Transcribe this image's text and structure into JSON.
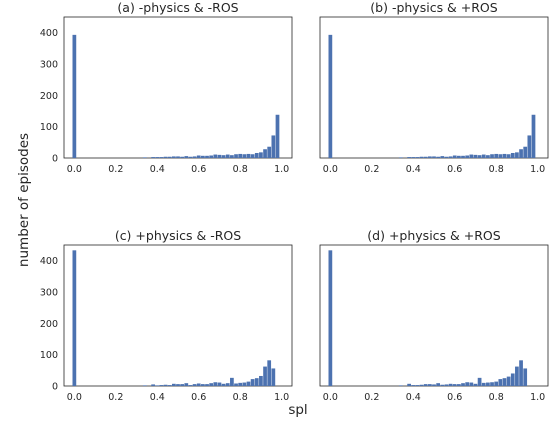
{
  "figure": {
    "xlabel": "spl",
    "ylabel": "number of episodes"
  },
  "colors": {
    "bar": "#4c72b0",
    "frame": "#262626",
    "text": "#262626"
  },
  "chart_data": [
    {
      "type": "bar",
      "title": "(a) -physics & -ROS",
      "xlim": [
        -0.05,
        1.05
      ],
      "ylim": [
        0,
        450
      ],
      "xticks": [
        "0.0",
        "0.2",
        "0.4",
        "0.6",
        "0.8",
        "1.0"
      ],
      "yticks": [
        "0",
        "100",
        "200",
        "300",
        "400"
      ],
      "show_yticks": true,
      "bin_width": 0.02,
      "x": [
        0.0,
        0.34,
        0.38,
        0.4,
        0.42,
        0.44,
        0.46,
        0.48,
        0.5,
        0.52,
        0.54,
        0.56,
        0.58,
        0.6,
        0.62,
        0.64,
        0.66,
        0.68,
        0.7,
        0.72,
        0.74,
        0.76,
        0.78,
        0.8,
        0.82,
        0.84,
        0.86,
        0.88,
        0.9,
        0.92,
        0.94,
        0.96,
        0.98
      ],
      "values": [
        393,
        2,
        3,
        3,
        3,
        4,
        4,
        5,
        5,
        4,
        6,
        4,
        5,
        8,
        7,
        7,
        8,
        11,
        10,
        9,
        11,
        9,
        12,
        13,
        12,
        13,
        12,
        16,
        18,
        28,
        36,
        72,
        138
      ]
    },
    {
      "type": "bar",
      "title": "(b) -physics & +ROS",
      "xlim": [
        -0.05,
        1.05
      ],
      "ylim": [
        0,
        450
      ],
      "xticks": [
        "0.0",
        "0.2",
        "0.4",
        "0.6",
        "0.8",
        "1.0"
      ],
      "yticks": [],
      "show_yticks": false,
      "bin_width": 0.02,
      "x": [
        0.0,
        0.34,
        0.38,
        0.4,
        0.42,
        0.44,
        0.46,
        0.48,
        0.5,
        0.52,
        0.54,
        0.56,
        0.58,
        0.6,
        0.62,
        0.64,
        0.66,
        0.68,
        0.7,
        0.72,
        0.74,
        0.76,
        0.78,
        0.8,
        0.82,
        0.84,
        0.86,
        0.88,
        0.9,
        0.92,
        0.94,
        0.96,
        0.98
      ],
      "values": [
        393,
        2,
        3,
        3,
        3,
        4,
        4,
        5,
        5,
        4,
        6,
        4,
        5,
        8,
        7,
        7,
        8,
        11,
        10,
        9,
        11,
        9,
        12,
        13,
        12,
        13,
        12,
        16,
        18,
        28,
        36,
        72,
        138
      ]
    },
    {
      "type": "bar",
      "title": "(c) +physics & -ROS",
      "xlim": [
        -0.05,
        1.05
      ],
      "ylim": [
        0,
        450
      ],
      "xticks": [
        "0.0",
        "0.2",
        "0.4",
        "0.6",
        "0.8",
        "1.0"
      ],
      "yticks": [
        "0",
        "100",
        "200",
        "300",
        "400"
      ],
      "show_yticks": true,
      "bin_width": 0.02,
      "x": [
        0.0,
        0.34,
        0.38,
        0.4,
        0.42,
        0.44,
        0.46,
        0.48,
        0.5,
        0.52,
        0.54,
        0.56,
        0.58,
        0.6,
        0.62,
        0.64,
        0.66,
        0.68,
        0.7,
        0.72,
        0.74,
        0.76,
        0.78,
        0.8,
        0.82,
        0.84,
        0.86,
        0.88,
        0.9,
        0.92,
        0.94,
        0.96,
        0.98
      ],
      "values": [
        433,
        2,
        5,
        2,
        3,
        4,
        3,
        7,
        6,
        6,
        9,
        3,
        6,
        8,
        6,
        6,
        9,
        12,
        11,
        7,
        9,
        26,
        8,
        10,
        11,
        14,
        22,
        25,
        32,
        62,
        82,
        56,
        0
      ]
    },
    {
      "type": "bar",
      "title": "(d) +physics & +ROS",
      "xlim": [
        -0.05,
        1.05
      ],
      "ylim": [
        0,
        450
      ],
      "xticks": [
        "0.0",
        "0.2",
        "0.4",
        "0.6",
        "0.8",
        "1.0"
      ],
      "yticks": [],
      "show_yticks": false,
      "bin_width": 0.02,
      "x": [
        0.0,
        0.34,
        0.38,
        0.4,
        0.42,
        0.44,
        0.46,
        0.48,
        0.5,
        0.52,
        0.54,
        0.56,
        0.58,
        0.6,
        0.62,
        0.64,
        0.66,
        0.68,
        0.7,
        0.72,
        0.74,
        0.76,
        0.78,
        0.8,
        0.82,
        0.84,
        0.86,
        0.88,
        0.9,
        0.92,
        0.94,
        0.96,
        0.98
      ],
      "values": [
        433,
        2,
        7,
        3,
        3,
        4,
        6,
        6,
        5,
        9,
        4,
        5,
        7,
        6,
        6,
        9,
        12,
        11,
        7,
        26,
        10,
        11,
        12,
        14,
        22,
        25,
        30,
        40,
        62,
        82,
        56,
        0,
        0
      ]
    }
  ]
}
